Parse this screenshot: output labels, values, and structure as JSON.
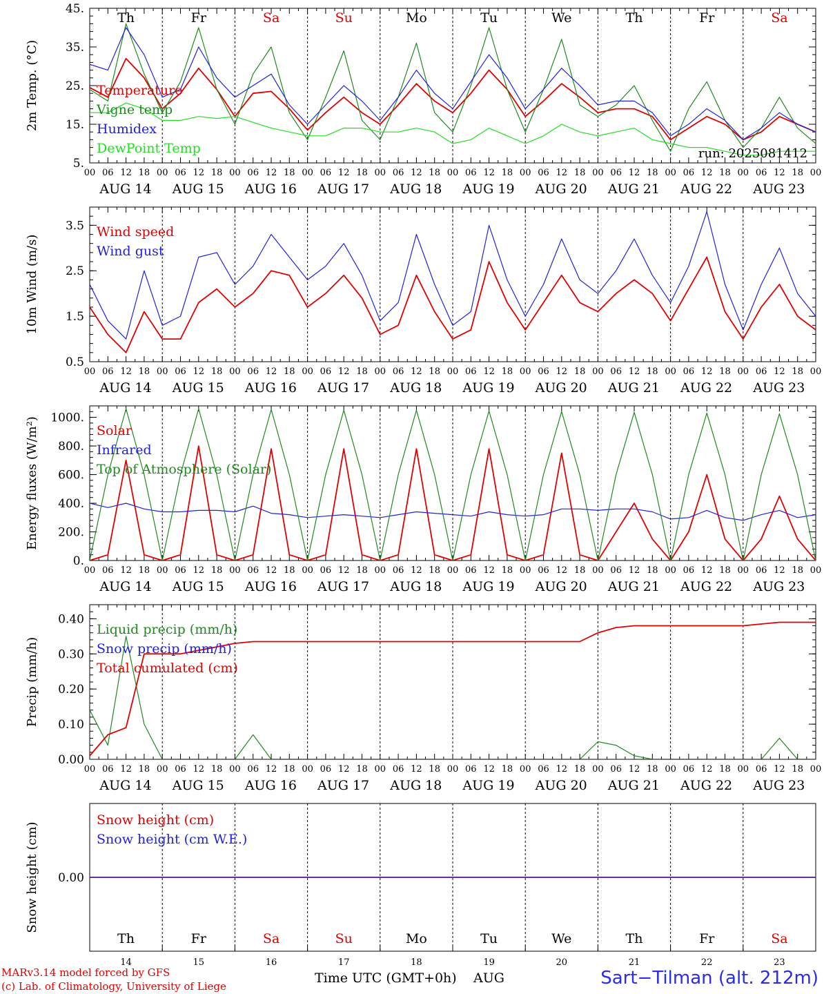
{
  "days": [
    "Th",
    "Fr",
    "Sa",
    "Su",
    "Mo",
    "Tu",
    "We",
    "Th",
    "Fr",
    "Sa"
  ],
  "weekend_indices": [
    2,
    3,
    9
  ],
  "dates": [
    "AUG 14",
    "AUG 15",
    "AUG 16",
    "AUG 17",
    "AUG 18",
    "AUG 19",
    "AUG 20",
    "AUG 21",
    "AUG 22",
    "AUG 23"
  ],
  "day_numbers": [
    "14",
    "15",
    "16",
    "17",
    "18",
    "19",
    "20",
    "21",
    "22",
    "23"
  ],
  "hour_ticks": [
    "00",
    "06",
    "12",
    "18"
  ],
  "final_hour": "00",
  "colors": {
    "red": "#e00000",
    "green": "#1e8a1e",
    "blue": "#2020e0",
    "lightgreen": "#22dd22",
    "grid": "#000000"
  },
  "footer": {
    "line1": "MARv3.14 model forced by GFS",
    "line2": "(c) Lab. of Climatology, University of Liege",
    "xlabel": "Time UTC (GMT+0h)",
    "month": "AUG",
    "station": "Sart−Tilman (alt. 212m)"
  },
  "chart_data": [
    {
      "type": "line",
      "ylabel": "2m Temp. (°C)",
      "ylim": [
        5,
        45
      ],
      "yticks": [
        "5.",
        "15.",
        "25.",
        "35.",
        "45."
      ],
      "annotation": "run: 2025081412",
      "x_hours": [
        0,
        6,
        12,
        18,
        24,
        30,
        36,
        42,
        48,
        54,
        60,
        66,
        72,
        78,
        84,
        90,
        96,
        102,
        108,
        114,
        120,
        126,
        132,
        138,
        144,
        150,
        156,
        162,
        168,
        174,
        180,
        186,
        192,
        198,
        204,
        210,
        216,
        222,
        228,
        234,
        240
      ],
      "series": [
        {
          "name": "Temperature",
          "color": "red",
          "values": [
            24.5,
            22,
            32,
            27,
            19,
            23,
            29.5,
            24,
            17,
            23,
            23.5,
            19,
            13.5,
            18,
            22,
            18,
            15,
            20,
            25.5,
            21,
            18,
            23,
            29,
            24,
            17,
            21,
            25.5,
            22,
            18,
            19,
            19,
            17,
            11,
            14,
            17,
            15,
            11,
            13,
            17,
            15,
            13
          ]
        },
        {
          "name": "Vigne temp",
          "color": "green",
          "values": [
            24,
            21,
            41,
            28,
            18,
            26,
            40,
            24,
            15,
            28,
            35,
            18,
            11,
            22,
            34,
            16,
            11,
            22,
            36,
            18,
            13,
            25,
            40,
            24,
            13,
            24,
            37,
            20,
            17,
            20,
            25,
            16,
            8,
            19,
            26,
            16,
            9,
            14,
            22,
            14,
            10
          ]
        },
        {
          "name": "Humidex",
          "color": "blue",
          "values": [
            30.5,
            29,
            40,
            33,
            22,
            24,
            35,
            27,
            22,
            25,
            28,
            20,
            15,
            20,
            25,
            21,
            16,
            22,
            29,
            23,
            19,
            26,
            33,
            27,
            19,
            24,
            29.5,
            25,
            20,
            21,
            21,
            18,
            12,
            15,
            19,
            16,
            11,
            14,
            18,
            15,
            13
          ]
        },
        {
          "name": "DewPoint Temp",
          "color": "lightgreen",
          "values": [
            18,
            18,
            20.5,
            19,
            16,
            16,
            17,
            16.5,
            17,
            15.5,
            14,
            13,
            12,
            12,
            14,
            14,
            13,
            13,
            14,
            13,
            10,
            11,
            14,
            12,
            10,
            12,
            15,
            13,
            12,
            13,
            14,
            11,
            10,
            9,
            9,
            8,
            7,
            7,
            8,
            8,
            8
          ]
        }
      ]
    },
    {
      "type": "line",
      "ylabel": "10m Wind (m/s)",
      "ylim": [
        0.5,
        3.9
      ],
      "yticks": [
        "0.5",
        "1.5",
        "2.5",
        "3.5"
      ],
      "x_hours": [
        0,
        6,
        12,
        18,
        24,
        30,
        36,
        42,
        48,
        54,
        60,
        66,
        72,
        78,
        84,
        90,
        96,
        102,
        108,
        114,
        120,
        126,
        132,
        138,
        144,
        150,
        156,
        162,
        168,
        174,
        180,
        186,
        192,
        198,
        204,
        210,
        216,
        222,
        228,
        234,
        240
      ],
      "series": [
        {
          "name": "Wind speed",
          "color": "red",
          "values": [
            1.7,
            1.1,
            0.7,
            1.6,
            1.0,
            1.0,
            1.8,
            2.1,
            1.7,
            2.0,
            2.5,
            2.4,
            1.7,
            2.0,
            2.4,
            1.9,
            1.1,
            1.3,
            2.4,
            1.6,
            1.0,
            1.2,
            2.7,
            1.8,
            1.2,
            1.8,
            2.4,
            1.8,
            1.6,
            2.0,
            2.3,
            2.0,
            1.4,
            2.1,
            2.8,
            1.6,
            1.0,
            1.7,
            2.2,
            1.5,
            1.2
          ]
        },
        {
          "name": "Wind gust",
          "color": "blue",
          "values": [
            2.2,
            1.4,
            1.0,
            2.5,
            1.3,
            1.5,
            2.8,
            2.9,
            2.2,
            2.6,
            3.3,
            2.8,
            2.3,
            2.6,
            3.1,
            2.4,
            1.4,
            1.8,
            3.3,
            2.2,
            1.3,
            1.6,
            3.5,
            2.3,
            1.5,
            2.2,
            3.2,
            2.3,
            2.0,
            2.5,
            3.2,
            2.4,
            1.8,
            2.6,
            3.8,
            2.2,
            1.2,
            2.2,
            3.0,
            2.0,
            1.5
          ]
        }
      ]
    },
    {
      "type": "line",
      "ylabel": "Energy fluxes (W/m²)",
      "ylim": [
        0,
        1080
      ],
      "yticks": [
        "0.",
        "200.",
        "400.",
        "600.",
        "800.",
        "1000."
      ],
      "x_hours": [
        0,
        6,
        12,
        18,
        24,
        30,
        36,
        42,
        48,
        54,
        60,
        66,
        72,
        78,
        84,
        90,
        96,
        102,
        108,
        114,
        120,
        126,
        132,
        138,
        144,
        150,
        156,
        162,
        168,
        174,
        180,
        186,
        192,
        198,
        204,
        210,
        216,
        222,
        228,
        234,
        240
      ],
      "series": [
        {
          "name": "Solar",
          "color": "red",
          "values": [
            0,
            40,
            700,
            40,
            0,
            40,
            800,
            40,
            0,
            40,
            780,
            40,
            0,
            40,
            780,
            40,
            0,
            40,
            780,
            40,
            0,
            40,
            780,
            40,
            0,
            40,
            750,
            40,
            0,
            200,
            400,
            150,
            0,
            200,
            600,
            150,
            0,
            150,
            450,
            150,
            0
          ]
        },
        {
          "name": "Infrared",
          "color": "blue",
          "values": [
            400,
            370,
            400,
            360,
            340,
            340,
            350,
            350,
            340,
            380,
            330,
            320,
            300,
            310,
            320,
            310,
            300,
            320,
            340,
            330,
            320,
            310,
            340,
            320,
            310,
            320,
            360,
            360,
            350,
            360,
            360,
            340,
            290,
            300,
            350,
            300,
            280,
            320,
            350,
            300,
            320
          ]
        },
        {
          "name": "Top of Atmosphere (Solar)",
          "color": "green",
          "values": [
            0,
            600,
            1060,
            600,
            0,
            600,
            1060,
            600,
            0,
            600,
            1055,
            600,
            0,
            600,
            1050,
            600,
            0,
            600,
            1050,
            600,
            0,
            600,
            1045,
            600,
            0,
            600,
            1040,
            600,
            0,
            600,
            1035,
            600,
            0,
            600,
            1030,
            600,
            0,
            600,
            1025,
            600,
            0
          ]
        }
      ]
    },
    {
      "type": "line",
      "ylabel": "Precip (mm/h)",
      "ylim": [
        0,
        0.44
      ],
      "yticks": [
        "0.00",
        "0.10",
        "0.20",
        "0.30",
        "0.40"
      ],
      "x_hours": [
        0,
        6,
        12,
        18,
        24,
        30,
        36,
        42,
        48,
        54,
        60,
        66,
        72,
        78,
        84,
        90,
        96,
        102,
        108,
        114,
        120,
        126,
        132,
        138,
        144,
        150,
        156,
        162,
        168,
        174,
        180,
        186,
        192,
        198,
        204,
        210,
        216,
        222,
        228,
        234,
        240
      ],
      "series": [
        {
          "name": "Liquid precip (mm/h)",
          "color": "green",
          "values": [
            0.14,
            0.04,
            0.35,
            0.1,
            0,
            0,
            0,
            0,
            0,
            0.07,
            0,
            0,
            0,
            0,
            0,
            0,
            0,
            0,
            0,
            0,
            0,
            0,
            0,
            0,
            0,
            0,
            0,
            0,
            0.05,
            0.04,
            0.01,
            0,
            0,
            0,
            0,
            0,
            0,
            0,
            0.06,
            0,
            0
          ]
        },
        {
          "name": "Snow precip (mm/h)",
          "color": "blue",
          "values": [
            0,
            0,
            0,
            0,
            0,
            0,
            0,
            0,
            0,
            0,
            0,
            0,
            0,
            0,
            0,
            0,
            0,
            0,
            0,
            0,
            0,
            0,
            0,
            0,
            0,
            0,
            0,
            0,
            0,
            0,
            0,
            0,
            0,
            0,
            0,
            0,
            0,
            0,
            0,
            0,
            0
          ]
        },
        {
          "name": "Total cumulated (cm)",
          "color": "red",
          "values": [
            0.01,
            0.07,
            0.09,
            0.3,
            0.3,
            0.3,
            0.31,
            0.32,
            0.33,
            0.335,
            0.335,
            0.335,
            0.335,
            0.335,
            0.335,
            0.335,
            0.335,
            0.335,
            0.335,
            0.335,
            0.335,
            0.335,
            0.335,
            0.335,
            0.335,
            0.335,
            0.335,
            0.335,
            0.36,
            0.375,
            0.38,
            0.38,
            0.38,
            0.38,
            0.38,
            0.38,
            0.38,
            0.385,
            0.39,
            0.39,
            0.39
          ]
        }
      ]
    },
    {
      "type": "line",
      "ylabel": "Snow height (cm)",
      "ylim": [
        -1,
        1
      ],
      "yticks": [
        "0.00"
      ],
      "x_hours": [
        0,
        240
      ],
      "series": [
        {
          "name": "Snow height (cm)",
          "color": "red",
          "values": [
            0,
            0
          ]
        },
        {
          "name": "Snow height (cm W.E.)",
          "color": "blue",
          "values": [
            0,
            0
          ]
        }
      ]
    }
  ]
}
